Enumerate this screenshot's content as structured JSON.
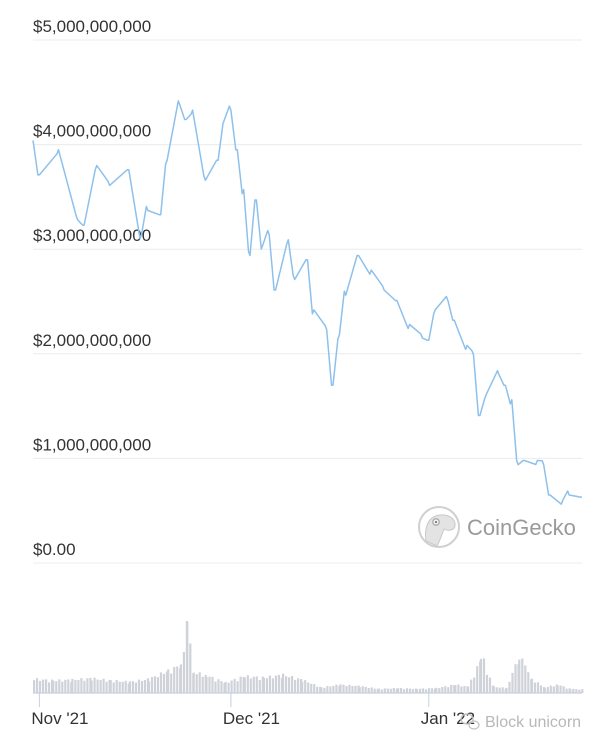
{
  "chart_data": {
    "type": "line",
    "title": "",
    "xlabel": "",
    "ylabel": "",
    "ylim": [
      0,
      5000000000
    ],
    "xlim": [
      "2021-10-31",
      "2022-01-25"
    ],
    "grid": true,
    "y_ticks": [
      {
        "value": 5000000000,
        "label": "$5,000,000,000"
      },
      {
        "value": 4000000000,
        "label": "$4,000,000,000"
      },
      {
        "value": 3000000000,
        "label": "$3,000,000,000"
      },
      {
        "value": 2000000000,
        "label": "$2,000,000,000"
      },
      {
        "value": 1000000000,
        "label": "$1,000,000,000"
      },
      {
        "value": 0,
        "label": "$0.00"
      }
    ],
    "x_ticks": [
      {
        "date": "2021-11-01",
        "label": "Nov '21"
      },
      {
        "date": "2021-12-01",
        "label": "Dec '21"
      },
      {
        "date": "2022-01-01",
        "label": "Jan '22"
      }
    ],
    "series": [
      {
        "color": "#8dc1ec",
        "points": [
          [
            "2021-10-31",
            4040000000.0
          ],
          [
            "2021-11-01",
            3710000000.0
          ],
          [
            "2021-11-04",
            3950000000.0
          ],
          [
            "2021-11-07",
            3280000000.0
          ],
          [
            "2021-11-08",
            3230000000.0
          ],
          [
            "2021-11-10",
            3800000000.0
          ],
          [
            "2021-11-12",
            3610000000.0
          ],
          [
            "2021-11-15",
            3760000000.0
          ],
          [
            "2021-11-17",
            3140000000.0
          ],
          [
            "2021-11-18",
            3370000000.0
          ],
          [
            "2021-11-20",
            3330000000.0
          ],
          [
            "2021-11-21",
            3850000000.0
          ],
          [
            "2021-11-23",
            4380000000.0
          ],
          [
            "2021-11-24",
            4240000000.0
          ],
          [
            "2021-11-25",
            4330000000.0
          ],
          [
            "2021-11-27",
            3660000000.0
          ],
          [
            "2021-11-29",
            3850000000.0
          ],
          [
            "2021-11-30",
            4240000000.0
          ],
          [
            "2021-12-01",
            4330000000.0
          ],
          [
            "2021-12-02",
            3950000000.0
          ],
          [
            "2021-12-03",
            3570000000.0
          ],
          [
            "2021-12-04",
            2940000000.0
          ],
          [
            "2021-12-05",
            3470000000.0
          ],
          [
            "2021-12-06",
            3040000000.0
          ],
          [
            "2021-12-07",
            3140000000.0
          ],
          [
            "2021-12-08",
            2610000000.0
          ],
          [
            "2021-12-10",
            3090000000.0
          ],
          [
            "2021-12-11",
            2710000000.0
          ],
          [
            "2021-12-13",
            2900000000.0
          ],
          [
            "2021-12-14",
            2420000000.0
          ],
          [
            "2021-12-16",
            2230000000.0
          ],
          [
            "2021-12-17",
            1700000000.0
          ],
          [
            "2021-12-18",
            2180000000.0
          ],
          [
            "2021-12-19",
            2560000000.0
          ],
          [
            "2021-12-21",
            2940000000.0
          ],
          [
            "2021-12-23",
            2800000000.0
          ],
          [
            "2021-12-25",
            2610000000.0
          ],
          [
            "2021-12-27",
            2510000000.0
          ],
          [
            "2021-12-29",
            2280000000.0
          ],
          [
            "2021-12-31",
            2150000000.0
          ],
          [
            "2022-01-01",
            2130000000.0
          ],
          [
            "2022-01-02",
            2420000000.0
          ],
          [
            "2022-01-04",
            2510000000.0
          ],
          [
            "2022-01-05",
            2320000000.0
          ],
          [
            "2022-01-07",
            2080000000.0
          ],
          [
            "2022-01-08",
            1990000000.0
          ],
          [
            "2022-01-09",
            1410000000.0
          ],
          [
            "2022-01-10",
            1610000000.0
          ],
          [
            "2022-01-12",
            1800000000.0
          ],
          [
            "2022-01-13",
            1700000000.0
          ],
          [
            "2022-01-14",
            1560000000.0
          ],
          [
            "2022-01-15",
            940000000.0
          ],
          [
            "2022-01-16",
            980000000.0
          ],
          [
            "2022-01-18",
            980000000.0
          ],
          [
            "2022-01-19",
            940000000.0
          ],
          [
            "2022-01-20",
            650000000.0
          ],
          [
            "2022-01-22",
            600000000.0
          ],
          [
            "2022-01-23",
            650000000.0
          ],
          [
            "2022-01-25",
            630000000.0
          ]
        ]
      }
    ],
    "volume": {
      "color": "#cfd3d9",
      "relative_to_max": [
        [
          "2021-10-31",
          0.2
        ],
        [
          "2021-11-03",
          0.18
        ],
        [
          "2021-11-06",
          0.19
        ],
        [
          "2021-11-09",
          0.21
        ],
        [
          "2021-11-12",
          0.18
        ],
        [
          "2021-11-15",
          0.16
        ],
        [
          "2021-11-18",
          0.2
        ],
        [
          "2021-11-21",
          0.32
        ],
        [
          "2021-11-23",
          0.4
        ],
        [
          "2021-11-24",
          1.0
        ],
        [
          "2021-11-25",
          0.3
        ],
        [
          "2021-11-27",
          0.25
        ],
        [
          "2021-11-30",
          0.15
        ],
        [
          "2021-12-03",
          0.24
        ],
        [
          "2021-12-06",
          0.22
        ],
        [
          "2021-12-09",
          0.26
        ],
        [
          "2021-12-12",
          0.19
        ],
        [
          "2021-12-15",
          0.08
        ],
        [
          "2021-12-18",
          0.12
        ],
        [
          "2021-12-21",
          0.1
        ],
        [
          "2021-12-24",
          0.06
        ],
        [
          "2021-12-27",
          0.07
        ],
        [
          "2021-12-30",
          0.06
        ],
        [
          "2022-01-02",
          0.07
        ],
        [
          "2022-01-05",
          0.12
        ],
        [
          "2022-01-07",
          0.09
        ],
        [
          "2022-01-09",
          0.48
        ],
        [
          "2022-01-11",
          0.09
        ],
        [
          "2022-01-13",
          0.07
        ],
        [
          "2022-01-15",
          0.53
        ],
        [
          "2022-01-17",
          0.2
        ],
        [
          "2022-01-19",
          0.08
        ],
        [
          "2022-01-21",
          0.12
        ],
        [
          "2022-01-23",
          0.06
        ],
        [
          "2022-01-25",
          0.05
        ]
      ]
    }
  },
  "branding": {
    "logo_text": "CoinGecko"
  },
  "watermark": {
    "text": "Block unicorn"
  }
}
